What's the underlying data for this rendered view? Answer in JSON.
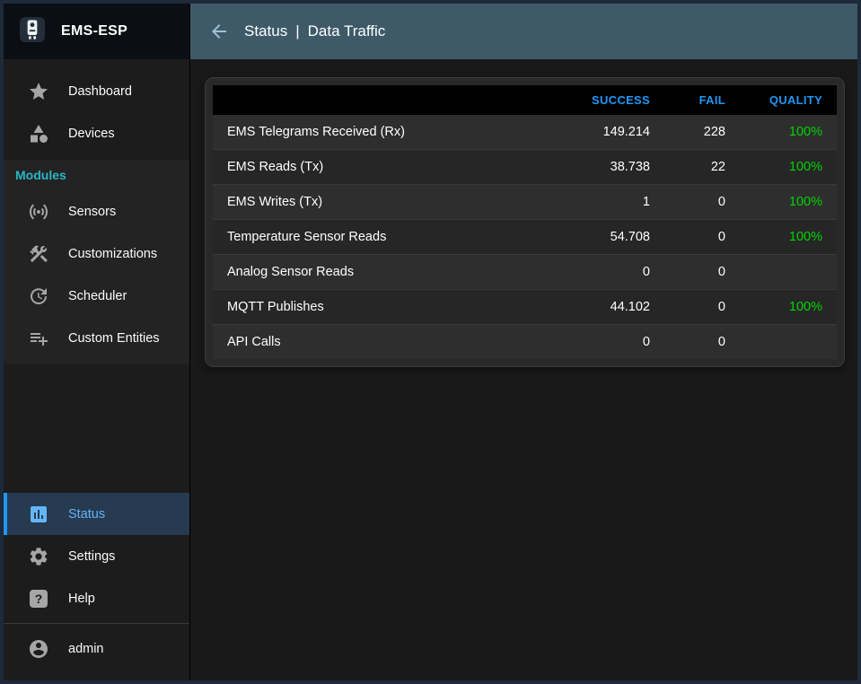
{
  "app": {
    "title": "EMS-ESP"
  },
  "topbar": {
    "back_icon": "arrow-back-icon",
    "section": "Status",
    "separator": "|",
    "page": "Data Traffic"
  },
  "sidebar": {
    "modules_label": "Modules",
    "main_items": [
      {
        "id": "dashboard",
        "label": "Dashboard",
        "icon": "star-icon"
      },
      {
        "id": "devices",
        "label": "Devices",
        "icon": "category-icon"
      }
    ],
    "module_items": [
      {
        "id": "sensors",
        "label": "Sensors",
        "icon": "sensors-icon"
      },
      {
        "id": "customizations",
        "label": "Customizations",
        "icon": "tools-icon"
      },
      {
        "id": "scheduler",
        "label": "Scheduler",
        "icon": "clock-arrow-icon"
      },
      {
        "id": "custom-entities",
        "label": "Custom Entities",
        "icon": "playlist-add-icon"
      }
    ],
    "bottom_items": [
      {
        "id": "status",
        "label": "Status",
        "icon": "bar-chart-icon",
        "active": true
      },
      {
        "id": "settings",
        "label": "Settings",
        "icon": "gear-icon"
      },
      {
        "id": "help",
        "label": "Help",
        "icon": "help-icon"
      }
    ],
    "user_items": [
      {
        "id": "admin",
        "label": "admin",
        "icon": "account-icon"
      }
    ]
  },
  "table": {
    "headers": {
      "label": "",
      "success": "SUCCESS",
      "fail": "FAIL",
      "quality": "QUALITY"
    },
    "rows": [
      {
        "label": "EMS Telegrams Received (Rx)",
        "success": "149.214",
        "fail": "228",
        "quality": "100%"
      },
      {
        "label": "EMS Reads (Tx)",
        "success": "38.738",
        "fail": "22",
        "quality": "100%"
      },
      {
        "label": "EMS Writes (Tx)",
        "success": "1",
        "fail": "0",
        "quality": "100%"
      },
      {
        "label": "Temperature Sensor Reads",
        "success": "54.708",
        "fail": "0",
        "quality": "100%"
      },
      {
        "label": "Analog Sensor Reads",
        "success": "0",
        "fail": "0",
        "quality": ""
      },
      {
        "label": "MQTT Publishes",
        "success": "44.102",
        "fail": "0",
        "quality": "100%"
      },
      {
        "label": "API Calls",
        "success": "0",
        "fail": "0",
        "quality": ""
      }
    ]
  },
  "colors": {
    "accent_blue": "#2196f3",
    "active_text": "#64b5f6",
    "quality_green": "#00d600",
    "topbar_teal": "#3e5a68",
    "modules_teal": "#29b6c6"
  }
}
